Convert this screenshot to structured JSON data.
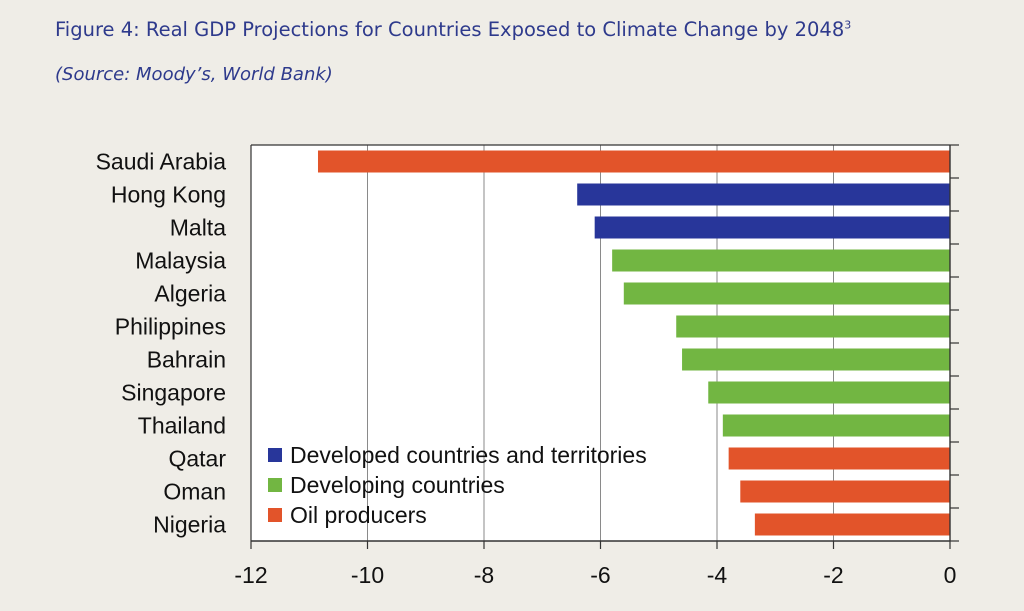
{
  "title": "Figure 4: Real GDP Projections for Countries Exposed to Climate Change by 2048",
  "title_footnote": "3",
  "source": "(Source: Moody’s, World Bank)",
  "chart_data": {
    "type": "bar",
    "orientation": "horizontal",
    "categories": [
      "Saudi Arabia",
      "Hong Kong",
      "Malta",
      "Malaysia",
      "Algeria",
      "Philippines",
      "Bahrain",
      "Singapore",
      "Thailand",
      "Qatar",
      "Oman",
      "Nigeria"
    ],
    "values": [
      -10.85,
      -6.4,
      -6.1,
      -5.8,
      -5.6,
      -4.7,
      -4.6,
      -4.15,
      -3.9,
      -3.8,
      -3.6,
      -3.35
    ],
    "groups": [
      "Oil producers",
      "Developed countries and territories",
      "Developed countries and territories",
      "Developing countries",
      "Developing countries",
      "Developing countries",
      "Developing countries",
      "Developing countries",
      "Developing countries",
      "Oil producers",
      "Oil producers",
      "Oil producers"
    ],
    "legend": [
      {
        "name": "Developed countries and territories",
        "color": "#28369a"
      },
      {
        "name": "Developing countries",
        "color": "#72b642"
      },
      {
        "name": "Oil producers",
        "color": "#e2542a"
      }
    ],
    "legend_position": "bottom-left",
    "xlim": [
      -12,
      0
    ],
    "xticks": [
      -12,
      -10,
      -8,
      -6,
      -4,
      -2,
      0
    ],
    "grid": "vertical",
    "xlabel": "",
    "ylabel": ""
  }
}
